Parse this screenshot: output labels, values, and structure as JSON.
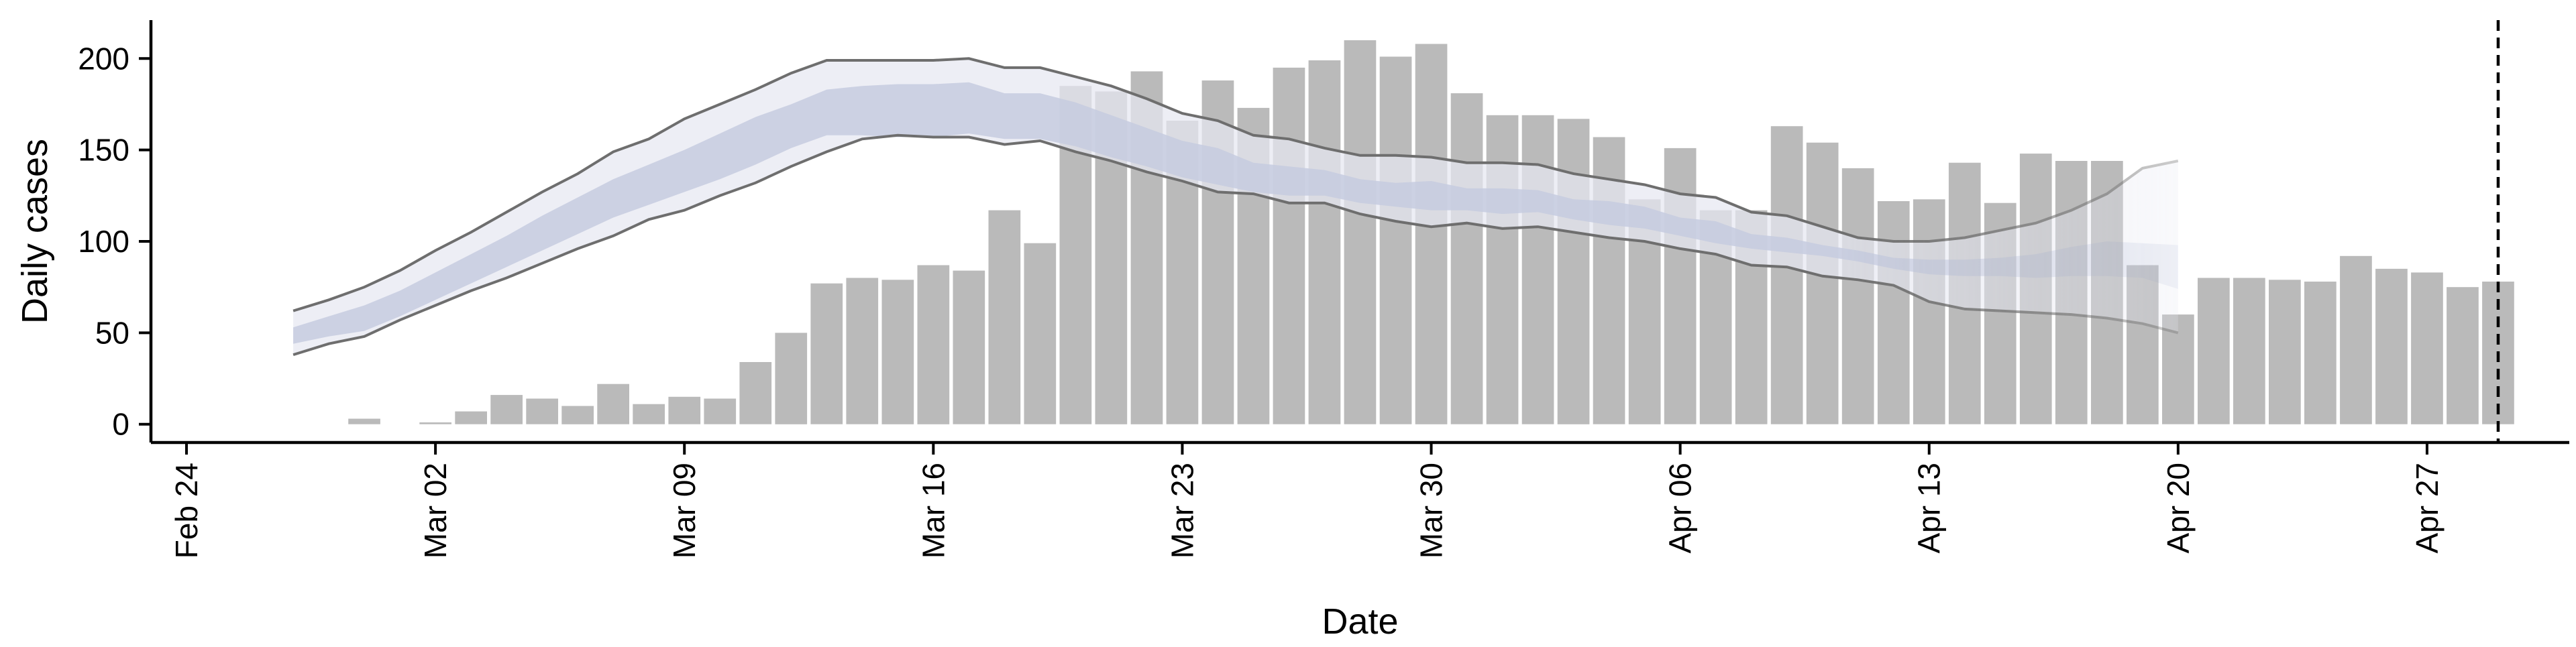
{
  "chart_data": {
    "type": "bar",
    "xlabel": "Date",
    "ylabel": "Daily cases",
    "ylim": [
      -10,
      221
    ],
    "xlim": [
      "2020-02-23",
      "2020-05-01"
    ],
    "grid": false,
    "y_ticks": [
      0,
      50,
      100,
      150,
      200
    ],
    "x_ticks": [
      {
        "date": "2020-02-24",
        "label": "Feb 24"
      },
      {
        "date": "2020-03-02",
        "label": "Mar 02"
      },
      {
        "date": "2020-03-09",
        "label": "Mar 09"
      },
      {
        "date": "2020-03-16",
        "label": "Mar 16"
      },
      {
        "date": "2020-03-23",
        "label": "Mar 23"
      },
      {
        "date": "2020-03-30",
        "label": "Mar 30"
      },
      {
        "date": "2020-04-06",
        "label": "Apr 06"
      },
      {
        "date": "2020-04-13",
        "label": "Apr 13"
      },
      {
        "date": "2020-04-20",
        "label": "Apr 20"
      },
      {
        "date": "2020-04-27",
        "label": "Apr 27"
      }
    ],
    "colors": {
      "bars": "#bababa",
      "band_outer": "#e6e8f1",
      "band_inner": "#c5cbdf",
      "band_lines": "#6e6e6e",
      "axis": "#000000",
      "vline": "#000000"
    },
    "vline_date": "2020-04-29",
    "bars": {
      "dates": [
        "2020-02-29",
        "2020-03-01",
        "2020-03-02",
        "2020-03-03",
        "2020-03-04",
        "2020-03-05",
        "2020-03-06",
        "2020-03-07",
        "2020-03-08",
        "2020-03-09",
        "2020-03-10",
        "2020-03-11",
        "2020-03-12",
        "2020-03-13",
        "2020-03-14",
        "2020-03-15",
        "2020-03-16",
        "2020-03-17",
        "2020-03-18",
        "2020-03-19",
        "2020-03-20",
        "2020-03-21",
        "2020-03-22",
        "2020-03-23",
        "2020-03-24",
        "2020-03-25",
        "2020-03-26",
        "2020-03-27",
        "2020-03-28",
        "2020-03-29",
        "2020-03-30",
        "2020-03-31",
        "2020-04-01",
        "2020-04-02",
        "2020-04-03",
        "2020-04-04",
        "2020-04-05",
        "2020-04-06",
        "2020-04-07",
        "2020-04-08",
        "2020-04-09",
        "2020-04-10",
        "2020-04-11",
        "2020-04-12",
        "2020-04-13",
        "2020-04-14",
        "2020-04-15",
        "2020-04-16",
        "2020-04-17",
        "2020-04-18",
        "2020-04-19",
        "2020-04-20",
        "2020-04-21",
        "2020-04-22",
        "2020-04-23",
        "2020-04-24",
        "2020-04-25",
        "2020-04-26",
        "2020-04-27",
        "2020-04-28",
        "2020-04-29"
      ],
      "values": [
        3,
        0,
        1,
        7,
        16,
        14,
        10,
        22,
        11,
        15,
        14,
        34,
        50,
        77,
        80,
        79,
        87,
        84,
        117,
        99,
        185,
        182,
        193,
        166,
        188,
        173,
        195,
        199,
        210,
        201,
        208,
        181,
        169,
        169,
        167,
        157,
        123,
        151,
        117,
        117,
        163,
        154,
        140,
        122,
        123,
        143,
        121,
        148,
        144,
        144,
        87,
        60,
        80,
        80,
        79,
        78,
        92,
        85,
        83,
        75,
        78
      ]
    },
    "estimate": {
      "dates": [
        "2020-02-27",
        "2020-02-28",
        "2020-02-29",
        "2020-03-01",
        "2020-03-02",
        "2020-03-03",
        "2020-03-04",
        "2020-03-05",
        "2020-03-06",
        "2020-03-07",
        "2020-03-08",
        "2020-03-09",
        "2020-03-10",
        "2020-03-11",
        "2020-03-12",
        "2020-03-13",
        "2020-03-14",
        "2020-03-15",
        "2020-03-16",
        "2020-03-17",
        "2020-03-18",
        "2020-03-19",
        "2020-03-20",
        "2020-03-21",
        "2020-03-22",
        "2020-03-23",
        "2020-03-24",
        "2020-03-25",
        "2020-03-26",
        "2020-03-27",
        "2020-03-28",
        "2020-03-29",
        "2020-03-30",
        "2020-03-31",
        "2020-04-01",
        "2020-04-02",
        "2020-04-03",
        "2020-04-04",
        "2020-04-05",
        "2020-04-06",
        "2020-04-07",
        "2020-04-08",
        "2020-04-09",
        "2020-04-10",
        "2020-04-11",
        "2020-04-12",
        "2020-04-13",
        "2020-04-14",
        "2020-04-15",
        "2020-04-16",
        "2020-04-17",
        "2020-04-18",
        "2020-04-19",
        "2020-04-20"
      ],
      "upper_90": [
        62,
        68,
        75,
        84,
        95,
        105,
        116,
        127,
        137,
        149,
        156,
        167,
        175,
        183,
        192,
        199,
        199,
        199,
        199,
        200,
        195,
        195,
        190,
        185,
        178,
        170,
        166,
        158,
        156,
        151,
        147,
        147,
        146,
        143,
        143,
        142,
        137,
        134,
        131,
        126,
        124,
        116,
        114,
        108,
        102,
        100,
        100,
        102,
        106,
        110,
        117,
        126,
        140,
        144
      ],
      "upper_50": [
        53,
        59,
        65,
        73,
        83,
        93,
        103,
        114,
        124,
        134,
        142,
        150,
        159,
        168,
        175,
        183,
        185,
        186,
        186,
        187,
        181,
        181,
        176,
        169,
        162,
        155,
        151,
        143,
        141,
        139,
        134,
        132,
        133,
        129,
        129,
        128,
        123,
        122,
        119,
        113,
        111,
        104,
        102,
        98,
        95,
        91,
        90,
        90,
        91,
        93,
        97,
        100,
        99,
        98
      ],
      "lower_50": [
        44,
        48,
        51,
        59,
        68,
        77,
        86,
        95,
        104,
        113,
        120,
        127,
        134,
        142,
        151,
        158,
        158,
        157,
        157,
        159,
        156,
        156,
        152,
        146,
        141,
        135,
        131,
        127,
        125,
        125,
        121,
        119,
        117,
        117,
        115,
        116,
        112,
        109,
        107,
        103,
        99,
        96,
        94,
        92,
        89,
        85,
        82,
        81,
        81,
        80,
        81,
        81,
        80,
        74
      ],
      "lower_90": [
        38,
        44,
        48,
        57,
        65,
        73,
        80,
        88,
        96,
        103,
        112,
        117,
        125,
        132,
        141,
        149,
        156,
        158,
        157,
        157,
        153,
        155,
        149,
        144,
        138,
        133,
        127,
        126,
        121,
        121,
        115,
        111,
        108,
        110,
        107,
        108,
        105,
        102,
        100,
        96,
        93,
        87,
        86,
        81,
        79,
        76,
        67,
        63,
        62,
        61,
        60,
        58,
        55,
        50
      ]
    }
  }
}
